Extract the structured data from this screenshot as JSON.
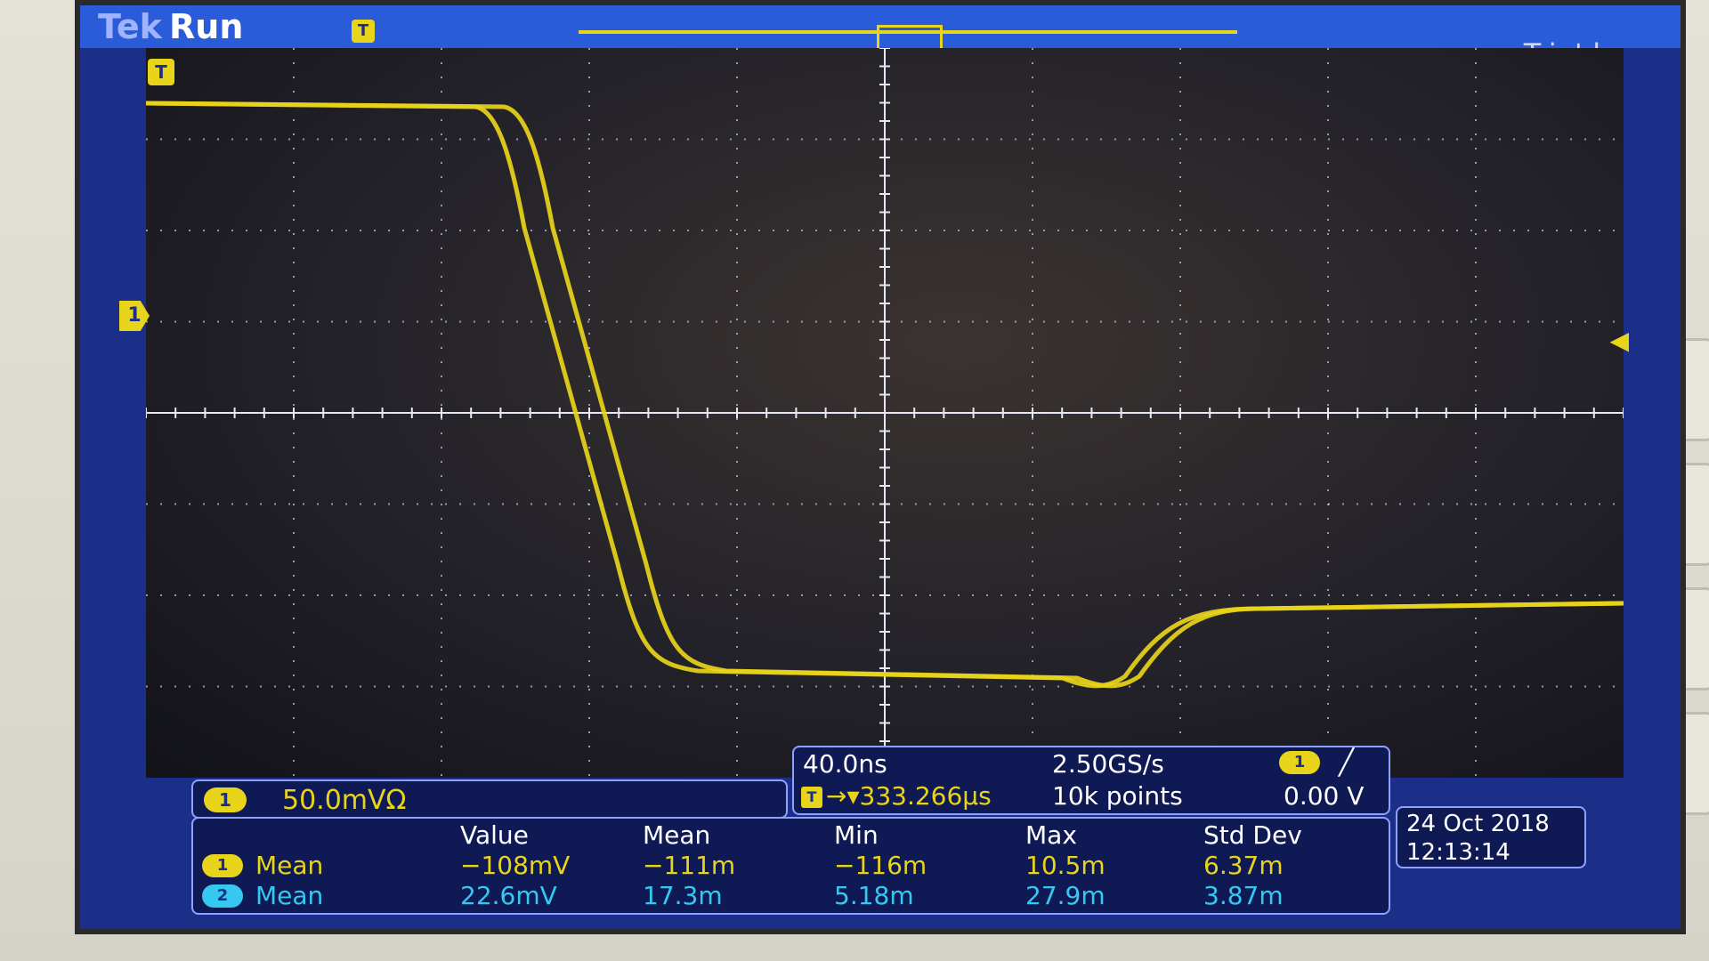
{
  "header": {
    "brand": "Tek",
    "status": "Run",
    "trigger_state": "Trig'd",
    "trigger_position_marker": "T"
  },
  "markers": {
    "channel1_ground": "1",
    "trigger_marker": "T"
  },
  "channel1_readout": {
    "badge": "1",
    "scale": "50.0mVΩ"
  },
  "timebase": {
    "time_per_div": "40.0ns",
    "sample_rate": "2.50GS/s",
    "record_length": "10k points",
    "trigger_source_badge": "1",
    "trigger_slope": "rising-edge-icon",
    "trigger_level": "0.00 V",
    "delay_marker": "T",
    "delay": "→▾333.266μs"
  },
  "measurements": {
    "columns": [
      "Value",
      "Mean",
      "Min",
      "Max",
      "Std Dev"
    ],
    "rows": [
      {
        "badge": "1",
        "name": "Mean",
        "values": [
          "−108mV",
          "−111m",
          "−116m",
          "10.5m",
          "6.37m"
        ],
        "color": "#e8d41a"
      },
      {
        "badge": "2",
        "name": "Mean",
        "values": [
          "22.6mV",
          "17.3m",
          "5.18m",
          "27.9m",
          "3.87m"
        ],
        "color": "#36c8f0"
      }
    ]
  },
  "datetime": {
    "date": "24 Oct  2018",
    "time": "12:13:14"
  },
  "colors": {
    "ch1": "#e8d41a",
    "ch2": "#36c8f0",
    "screen_bg": "#1b2f88"
  }
}
